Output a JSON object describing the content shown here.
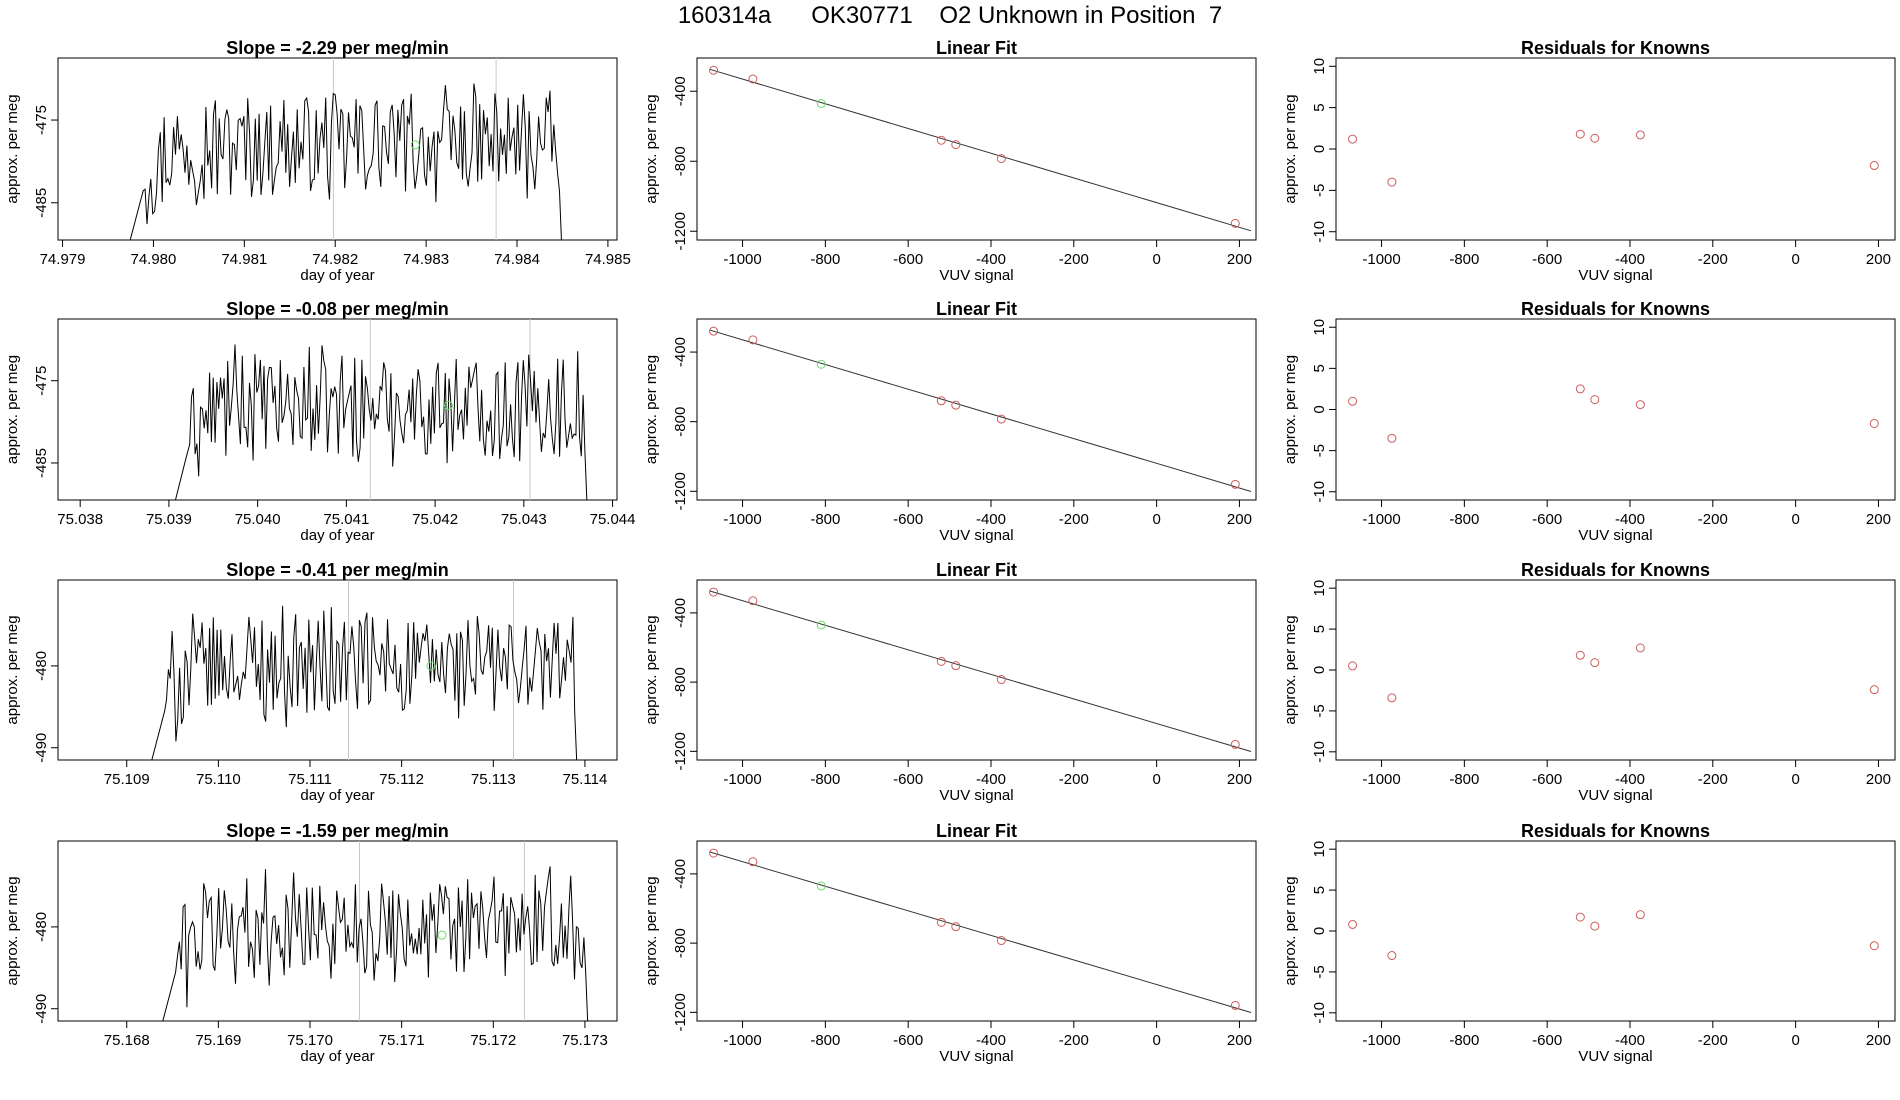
{
  "figure": {
    "title": "160314a      OK30771    O2 Unknown in Position  7",
    "series_color": "#000000",
    "fit_line_color": "#333333",
    "known_point_color": "#cd5c5c",
    "unknown_point_color": "#66dd66",
    "vline_color": "#c8c8c8"
  },
  "rows": [
    {
      "slope": {
        "title": "Slope =  -2.29  per meg/min",
        "xlabel": "day of year",
        "ylabel": "approx. per meg",
        "xlim": [
          74.97895,
          74.9851
        ],
        "ylim": [
          -489.5,
          -467.5
        ],
        "xticks": [
          "74.979",
          "74.980",
          "74.981",
          "74.982",
          "74.983",
          "74.984",
          "74.985"
        ],
        "yticks": [
          "-475",
          "-485"
        ],
        "vlines": [
          74.98198,
          74.98377
        ],
        "trace_start": 74.97972,
        "trace_end": 74.98453,
        "baseline": -478,
        "unknown_point": [
          74.98288,
          -478.0
        ]
      },
      "fit": {
        "title": "Linear Fit",
        "xlabel": "VUV signal",
        "ylabel": "approx. per meg",
        "xticks": [
          "-1000",
          "-800",
          "-600",
          "-400",
          "-200",
          "0",
          "200"
        ],
        "yticks": [
          "-400",
          "-800",
          "-1200"
        ],
        "known_points": [
          [
            -1070,
            -280
          ],
          [
            -975,
            -330
          ],
          [
            -520,
            -680
          ],
          [
            -485,
            -705
          ],
          [
            -375,
            -785
          ],
          [
            190,
            -1155
          ]
        ],
        "unknown_point": [
          -810,
          -470
        ]
      },
      "residuals": {
        "title": "Residuals for Knowns",
        "xlabel": "VUV signal",
        "ylabel": "approx. per meg",
        "xticks": [
          "-1000",
          "-800",
          "-600",
          "-400",
          "-200",
          "0",
          "200"
        ],
        "yticks": [
          "10",
          "5",
          "0",
          "-5",
          "-10"
        ],
        "points": [
          [
            -1070,
            1.2
          ],
          [
            -975,
            -4.0
          ],
          [
            -520,
            1.8
          ],
          [
            -485,
            1.3
          ],
          [
            -375,
            1.7
          ],
          [
            190,
            -2.0
          ]
        ]
      }
    },
    {
      "slope": {
        "title": "Slope =  -0.08  per meg/min",
        "xlabel": "day of year",
        "ylabel": "approx. per meg",
        "xlim": [
          75.03775,
          75.04405
        ],
        "ylim": [
          -489.5,
          -467.5
        ],
        "xticks": [
          "75.038",
          "75.039",
          "75.040",
          "75.041",
          "75.042",
          "75.043",
          "75.044"
        ],
        "yticks": [
          "-475",
          "-485"
        ],
        "vlines": [
          75.04127,
          75.04307
        ],
        "trace_start": 75.03905,
        "trace_end": 75.04375,
        "baseline": -478,
        "unknown_point": [
          75.04215,
          -478.0
        ]
      },
      "fit": {
        "title": "Linear Fit",
        "xlabel": "VUV signal",
        "ylabel": "approx. per meg",
        "xticks": [
          "-1000",
          "-800",
          "-600",
          "-400",
          "-200",
          "0",
          "200"
        ],
        "yticks": [
          "-400",
          "-800",
          "-1200"
        ],
        "known_points": [
          [
            -1070,
            -280
          ],
          [
            -975,
            -330
          ],
          [
            -520,
            -680
          ],
          [
            -485,
            -705
          ],
          [
            -375,
            -785
          ],
          [
            190,
            -1160
          ]
        ],
        "unknown_point": [
          -810,
          -470
        ]
      },
      "residuals": {
        "title": "Residuals for Knowns",
        "xlabel": "VUV signal",
        "ylabel": "approx. per meg",
        "xticks": [
          "-1000",
          "-800",
          "-600",
          "-400",
          "-200",
          "0",
          "200"
        ],
        "yticks": [
          "10",
          "5",
          "0",
          "-5",
          "-10"
        ],
        "points": [
          [
            -1070,
            1.0
          ],
          [
            -975,
            -3.5
          ],
          [
            -520,
            2.5
          ],
          [
            -485,
            1.2
          ],
          [
            -375,
            0.6
          ],
          [
            190,
            -1.7
          ]
        ]
      }
    },
    {
      "slope": {
        "title": "Slope =  -0.41  per meg/min",
        "xlabel": "day of year",
        "ylabel": "approx. per meg",
        "xlim": [
          75.10825,
          75.11435
        ],
        "ylim": [
          -491.5,
          -469.5
        ],
        "xticks": [
          "75.109",
          "75.110",
          "75.111",
          "75.112",
          "75.113",
          "75.114"
        ],
        "yticks": [
          "-480",
          "-490"
        ],
        "vlines": [
          75.11142,
          75.11322
        ],
        "trace_start": 75.10925,
        "trace_end": 75.11395,
        "baseline": -480,
        "unknown_point": [
          75.11232,
          -480.0
        ]
      },
      "fit": {
        "title": "Linear Fit",
        "xlabel": "VUV signal",
        "ylabel": "approx. per meg",
        "xticks": [
          "-1000",
          "-800",
          "-600",
          "-400",
          "-200",
          "0",
          "200"
        ],
        "yticks": [
          "-400",
          "-800",
          "-1200"
        ],
        "known_points": [
          [
            -1070,
            -280
          ],
          [
            -975,
            -330
          ],
          [
            -520,
            -680
          ],
          [
            -485,
            -705
          ],
          [
            -375,
            -785
          ],
          [
            190,
            -1160
          ]
        ],
        "unknown_point": [
          -810,
          -470
        ]
      },
      "residuals": {
        "title": "Residuals for Knowns",
        "xlabel": "VUV signal",
        "ylabel": "approx. per meg",
        "xticks": [
          "-1000",
          "-800",
          "-600",
          "-400",
          "-200",
          "0",
          "200"
        ],
        "yticks": [
          "10",
          "5",
          "0",
          "-5",
          "-10"
        ],
        "points": [
          [
            -1070,
            0.5
          ],
          [
            -975,
            -3.4
          ],
          [
            -520,
            1.8
          ],
          [
            -485,
            0.9
          ],
          [
            -375,
            2.7
          ],
          [
            190,
            -2.4
          ]
        ]
      }
    },
    {
      "slope": {
        "title": "Slope =  -1.59  per meg/min",
        "xlabel": "day of year",
        "ylabel": "approx. per meg",
        "xlim": [
          75.16725,
          75.17335
        ],
        "ylim": [
          -491.5,
          -469.5
        ],
        "xticks": [
          "75.168",
          "75.169",
          "75.170",
          "75.171",
          "75.172",
          "75.173"
        ],
        "yticks": [
          "-480",
          "-490"
        ],
        "vlines": [
          75.17054,
          75.17234
        ],
        "trace_start": 75.16837,
        "trace_end": 75.17307,
        "baseline": -480,
        "unknown_point": [
          75.17144,
          -481.0
        ]
      },
      "fit": {
        "title": "Linear Fit",
        "xlabel": "VUV signal",
        "ylabel": "approx. per meg",
        "xticks": [
          "-1000",
          "-800",
          "-600",
          "-400",
          "-200",
          "0",
          "200"
        ],
        "yticks": [
          "-400",
          "-800",
          "-1200"
        ],
        "known_points": [
          [
            -1070,
            -280
          ],
          [
            -975,
            -330
          ],
          [
            -520,
            -680
          ],
          [
            -485,
            -705
          ],
          [
            -375,
            -785
          ],
          [
            190,
            -1160
          ]
        ],
        "unknown_point": [
          -810,
          -470
        ]
      },
      "residuals": {
        "title": "Residuals for Knowns",
        "xlabel": "VUV signal",
        "ylabel": "approx. per meg",
        "xticks": [
          "-1000",
          "-800",
          "-600",
          "-400",
          "-200",
          "0",
          "200"
        ],
        "yticks": [
          "10",
          "5",
          "0",
          "-5",
          "-10"
        ],
        "points": [
          [
            -1070,
            0.8
          ],
          [
            -975,
            -3.0
          ],
          [
            -520,
            1.7
          ],
          [
            -485,
            0.6
          ],
          [
            -375,
            2.0
          ],
          [
            190,
            -1.8
          ]
        ]
      }
    }
  ],
  "chart_data": {
    "type": "scatter",
    "title": "160314a      OK30771    O2 Unknown in Position  7",
    "panels_per_row": [
      "line",
      "scatter",
      "scatter"
    ],
    "fit_xlim": [
      -1110,
      240
    ],
    "fit_ylim": [
      -1250,
      -210
    ],
    "residual_xlim": [
      -1110,
      240
    ],
    "residual_ylim": [
      -11,
      11
    ]
  }
}
